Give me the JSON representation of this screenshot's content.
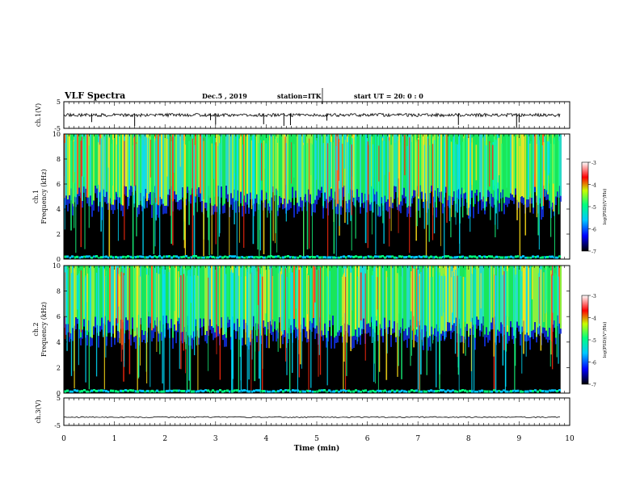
{
  "header": {
    "title": "VLF Spectra",
    "date": "Dec.5 , 2019",
    "station": "station=ITK",
    "start": "start UT = 20: 0 : 0"
  },
  "colors": {
    "spectrogram_background": "#000000",
    "waveform_line": "#000000",
    "colormap": [
      "#000000",
      "#0000ff",
      "#00c8ff",
      "#00ff80",
      "#c8ff00",
      "#ff0000",
      "#ffffff"
    ]
  },
  "chart_data": [
    {
      "type": "line",
      "panel": "ch1-waveform",
      "ylabel": "ch.1(V)",
      "ylim": [
        -5,
        5
      ],
      "yticks": [
        "5",
        "-5"
      ],
      "xlim": [
        0,
        10
      ],
      "baseline_value": 0,
      "spike_times_min": [
        0.55,
        1.4,
        2.9,
        3.0,
        3.95,
        4.35,
        4.48,
        5.2,
        7.8,
        8.95,
        9.0
      ],
      "grid": false
    },
    {
      "type": "heatmap",
      "panel": "ch1-spectrogram",
      "ylabel": "ch.1 Frequency (kHz)",
      "ylim": [
        0,
        10
      ],
      "yticks": [
        "0",
        "2",
        "4",
        "6",
        "8",
        "10"
      ],
      "xlim": [
        0,
        10
      ],
      "colorbar": {
        "label": "log(PSD)(V²/Hz)",
        "range": [
          -7,
          -3
        ],
        "ticks": [
          "-3",
          "-4",
          "-5",
          "-6",
          "-7"
        ]
      },
      "background_cutoff_khz": 5.0
    },
    {
      "type": "heatmap",
      "panel": "ch2-spectrogram",
      "ylabel": "ch.2 Frequency (kHz)",
      "ylim": [
        0,
        10
      ],
      "yticks": [
        "0",
        "2",
        "4",
        "6",
        "8",
        "10"
      ],
      "xlim": [
        0,
        10
      ],
      "colorbar": {
        "label": "log(PSD)(V²/Hz)",
        "range": [
          -7,
          -3
        ],
        "ticks": [
          "-3",
          "-4",
          "-5",
          "-6",
          "-7"
        ]
      },
      "background_cutoff_khz": 5.2
    },
    {
      "type": "line",
      "panel": "ch3-waveform",
      "ylabel": "ch.3(V)",
      "ylim": [
        -5,
        5
      ],
      "yticks": [
        "5",
        "-5"
      ],
      "xlim": [
        0,
        10
      ],
      "xticks": [
        "0",
        "1",
        "2",
        "3",
        "4",
        "5",
        "6",
        "7",
        "8",
        "9",
        "10"
      ],
      "xlabel": "Time (min)",
      "baseline_value": -2,
      "grid": false
    }
  ]
}
